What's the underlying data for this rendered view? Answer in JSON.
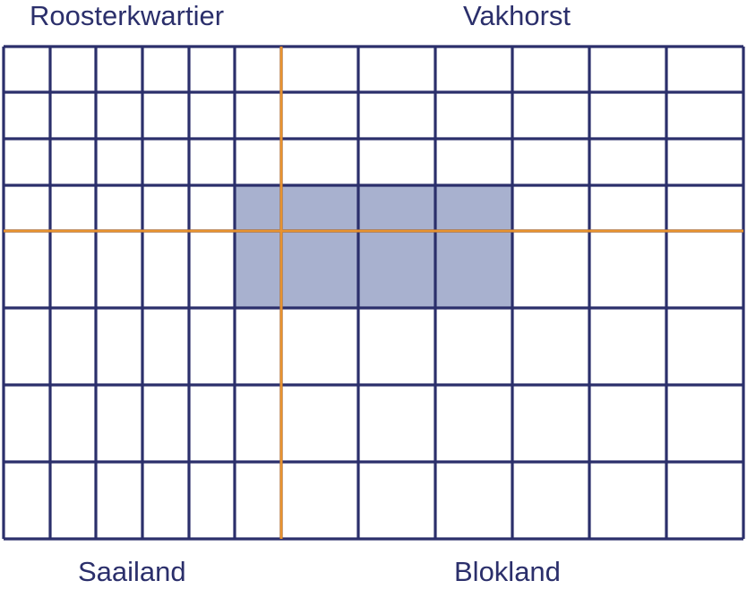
{
  "labels": {
    "top_left": "Roosterkwartier",
    "top_right": "Vakhorst",
    "bottom_left": "Saailand",
    "bottom_right": "Blokland"
  },
  "colors": {
    "grid": "#2b2f6b",
    "divider": "#e8922e",
    "highlight": "#a8b1cf",
    "label": "#2b2f6b"
  }
}
